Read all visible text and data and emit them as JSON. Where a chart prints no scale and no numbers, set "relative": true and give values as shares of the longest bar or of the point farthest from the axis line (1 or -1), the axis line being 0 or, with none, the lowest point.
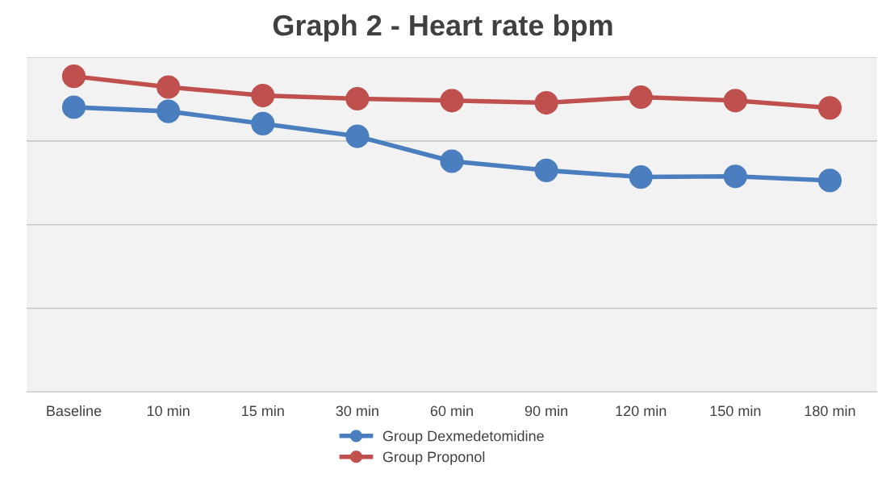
{
  "chart_data": {
    "type": "line",
    "title": "Graph 2 - Heart rate bpm",
    "relative": true,
    "categories": [
      "Baseline",
      "10 min",
      "15 min",
      "30 min",
      "60 min",
      "90 min",
      "120 min",
      "150 min",
      "180 min"
    ],
    "series": [
      {
        "name": "Group Dexmedetomidine",
        "color": "#4a7ebf",
        "values": [
          0.902,
          0.889,
          0.85,
          0.81,
          0.731,
          0.702,
          0.681,
          0.683,
          0.67
        ]
      },
      {
        "name": "Group Proponol",
        "color": "#c0504d",
        "values": [
          1.0,
          0.966,
          0.939,
          0.929,
          0.923,
          0.916,
          0.934,
          0.923,
          0.9
        ]
      }
    ],
    "marker": "circle",
    "line_style": "solid",
    "grid": "y",
    "legend": "bottom"
  }
}
